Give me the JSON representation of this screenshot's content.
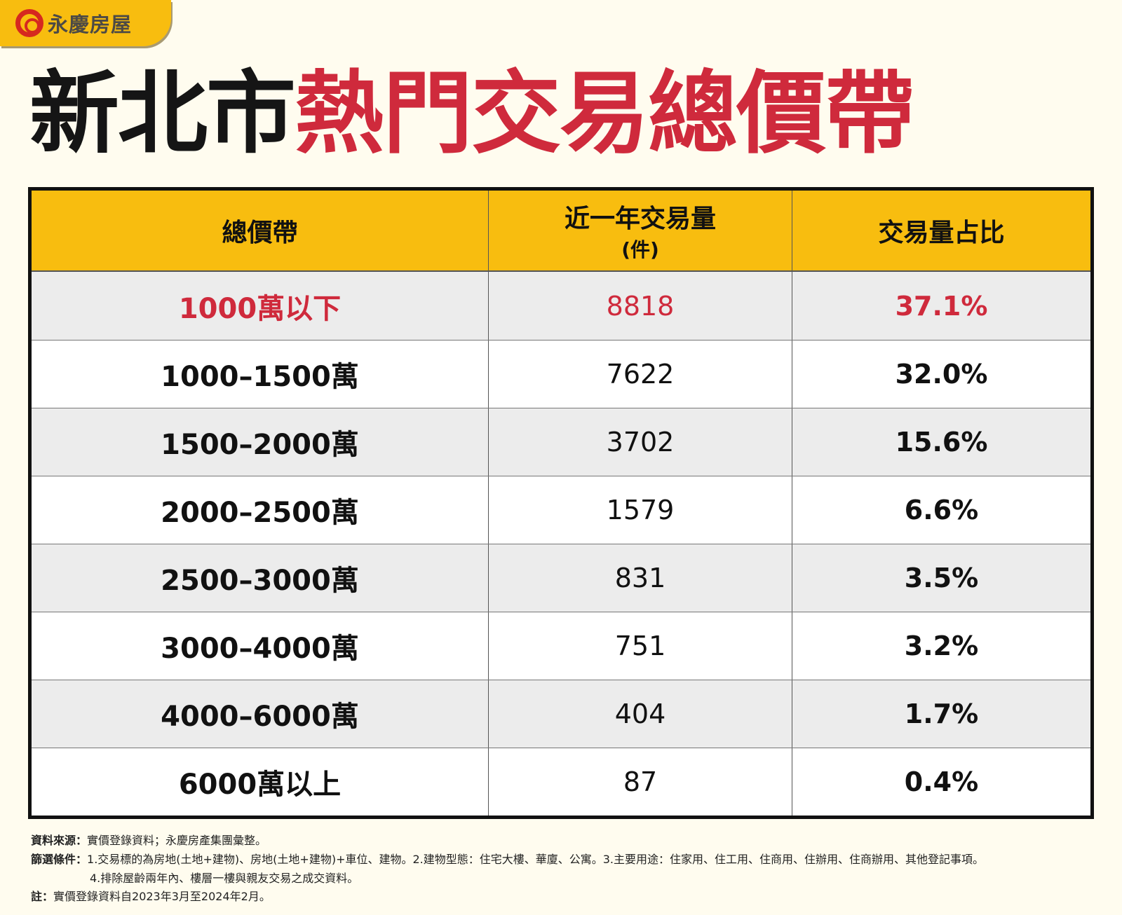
{
  "logo": {
    "text": "永慶房屋",
    "colors": {
      "tab": "#f8bd0f",
      "mark": "#d6281f"
    }
  },
  "title": {
    "prefix": "新北市",
    "highlight": "熱門交易總價帶",
    "highlight_color": "#cf2a3c"
  },
  "table": {
    "headers": [
      {
        "label": "總價帶"
      },
      {
        "label": "近一年交易量",
        "sub": "(件)"
      },
      {
        "label": "交易量占比"
      }
    ],
    "rows": [
      {
        "band": "1000萬以下",
        "count": "8818",
        "share": "37.1%",
        "highlight": true
      },
      {
        "band": "1000–1500萬",
        "count": "7622",
        "share": "32.0%"
      },
      {
        "band": "1500–2000萬",
        "count": "3702",
        "share": "15.6%"
      },
      {
        "band": "2000–2500萬",
        "count": "1579",
        "share": "6.6%"
      },
      {
        "band": "2500–3000萬",
        "count": "831",
        "share": "3.5%"
      },
      {
        "band": "3000–4000萬",
        "count": "751",
        "share": "3.2%"
      },
      {
        "band": "4000–6000萬",
        "count": "404",
        "share": "1.7%"
      },
      {
        "band": "6000萬以上",
        "count": "87",
        "share": "0.4%"
      }
    ]
  },
  "notes": {
    "source_label": "資料來源：",
    "source": "實價登錄資料；永慶房產集團彙整。",
    "filter_label": "篩選條件：",
    "filter1": "1.交易標的為房地(土地+建物)、房地(土地+建物)+車位、建物。2.建物型態：住宅大樓、華廈、公寓。3.主要用途：住家用、住工用、住商用、住辦用、住商辦用、其他登記事項。",
    "filter2": "4.排除屋齡兩年內、樓層一樓與親友交易之成交資料。",
    "note_label": "註：",
    "note": "實價登錄資料自2023年3月至2024年2月。"
  }
}
